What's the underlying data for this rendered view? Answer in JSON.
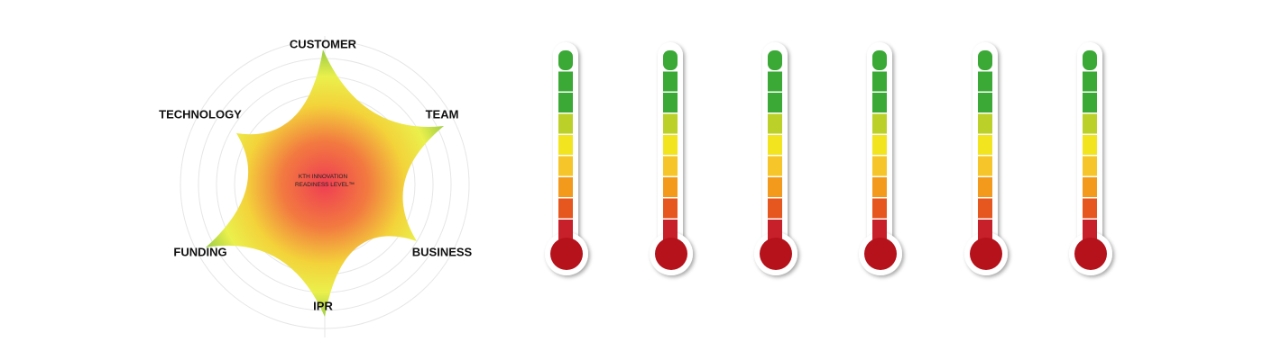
{
  "radar": {
    "axes": [
      "CUSTOMER",
      "TEAM",
      "BUSINESS",
      "IPR",
      "FUNDING",
      "TECHNOLOGY"
    ],
    "center_text": [
      "KTH INNOVATION",
      "READINESS LEVEL™"
    ]
  }
}
